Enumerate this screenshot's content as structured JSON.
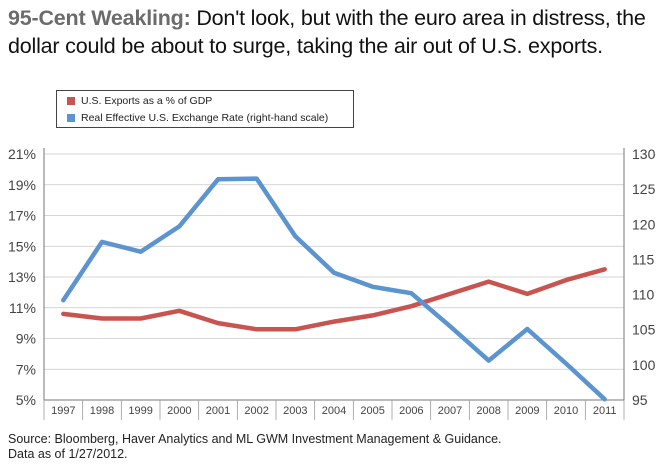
{
  "headline": {
    "lead": "95-Cent Weakling:",
    "text": " Don't look, but with the euro area in distress, the dollar could be about to surge, taking the air out of U.S. exports."
  },
  "colors": {
    "exports": "#c9534f",
    "exchange": "#5b94cf",
    "grid": "#c8c8c8",
    "axis": "#777777"
  },
  "chart_data": {
    "type": "line",
    "x": [
      "1997",
      "1998",
      "1999",
      "2000",
      "2001",
      "2002",
      "2003",
      "2004",
      "2005",
      "2006",
      "2007",
      "2008",
      "2009",
      "2010",
      "2011"
    ],
    "legend_placement": "top-left",
    "grid": true,
    "left_axis": {
      "ylim": [
        5,
        21
      ],
      "ticks": [
        "21%",
        "19%",
        "17%",
        "15%",
        "13%",
        "11%",
        "9%",
        "7%",
        "5%"
      ],
      "tick_values": [
        21,
        19,
        17,
        15,
        13,
        11,
        9,
        7,
        5
      ]
    },
    "right_axis": {
      "ylim": [
        95,
        130
      ],
      "ticks": [
        "130",
        "125",
        "120",
        "115",
        "110",
        "105",
        "100",
        "95"
      ],
      "tick_values": [
        130,
        125,
        120,
        115,
        110,
        105,
        100,
        95
      ]
    },
    "series": [
      {
        "name": "U.S. Exports as a % of GDP",
        "axis": "left",
        "color": "#c9534f",
        "values": [
          10.6,
          10.3,
          10.3,
          10.8,
          10.0,
          9.6,
          9.6,
          10.1,
          10.5,
          11.1,
          11.9,
          12.7,
          11.9,
          12.8,
          13.5
        ]
      },
      {
        "name": "Real Effective U.S. Exchange Rate (right-hand scale)",
        "axis": "right",
        "color": "#5b94cf",
        "values": [
          109.2,
          117.5,
          116.1,
          119.7,
          126.4,
          126.5,
          118.3,
          113.1,
          111.1,
          110.2,
          105.5,
          100.6,
          105.1,
          100.2,
          95.1
        ]
      }
    ]
  },
  "source": {
    "line1": "Source: Bloomberg, Haver Analytics and ML GWM Investment Management & Guidance.",
    "line2": "Data as of 1/27/2012."
  }
}
